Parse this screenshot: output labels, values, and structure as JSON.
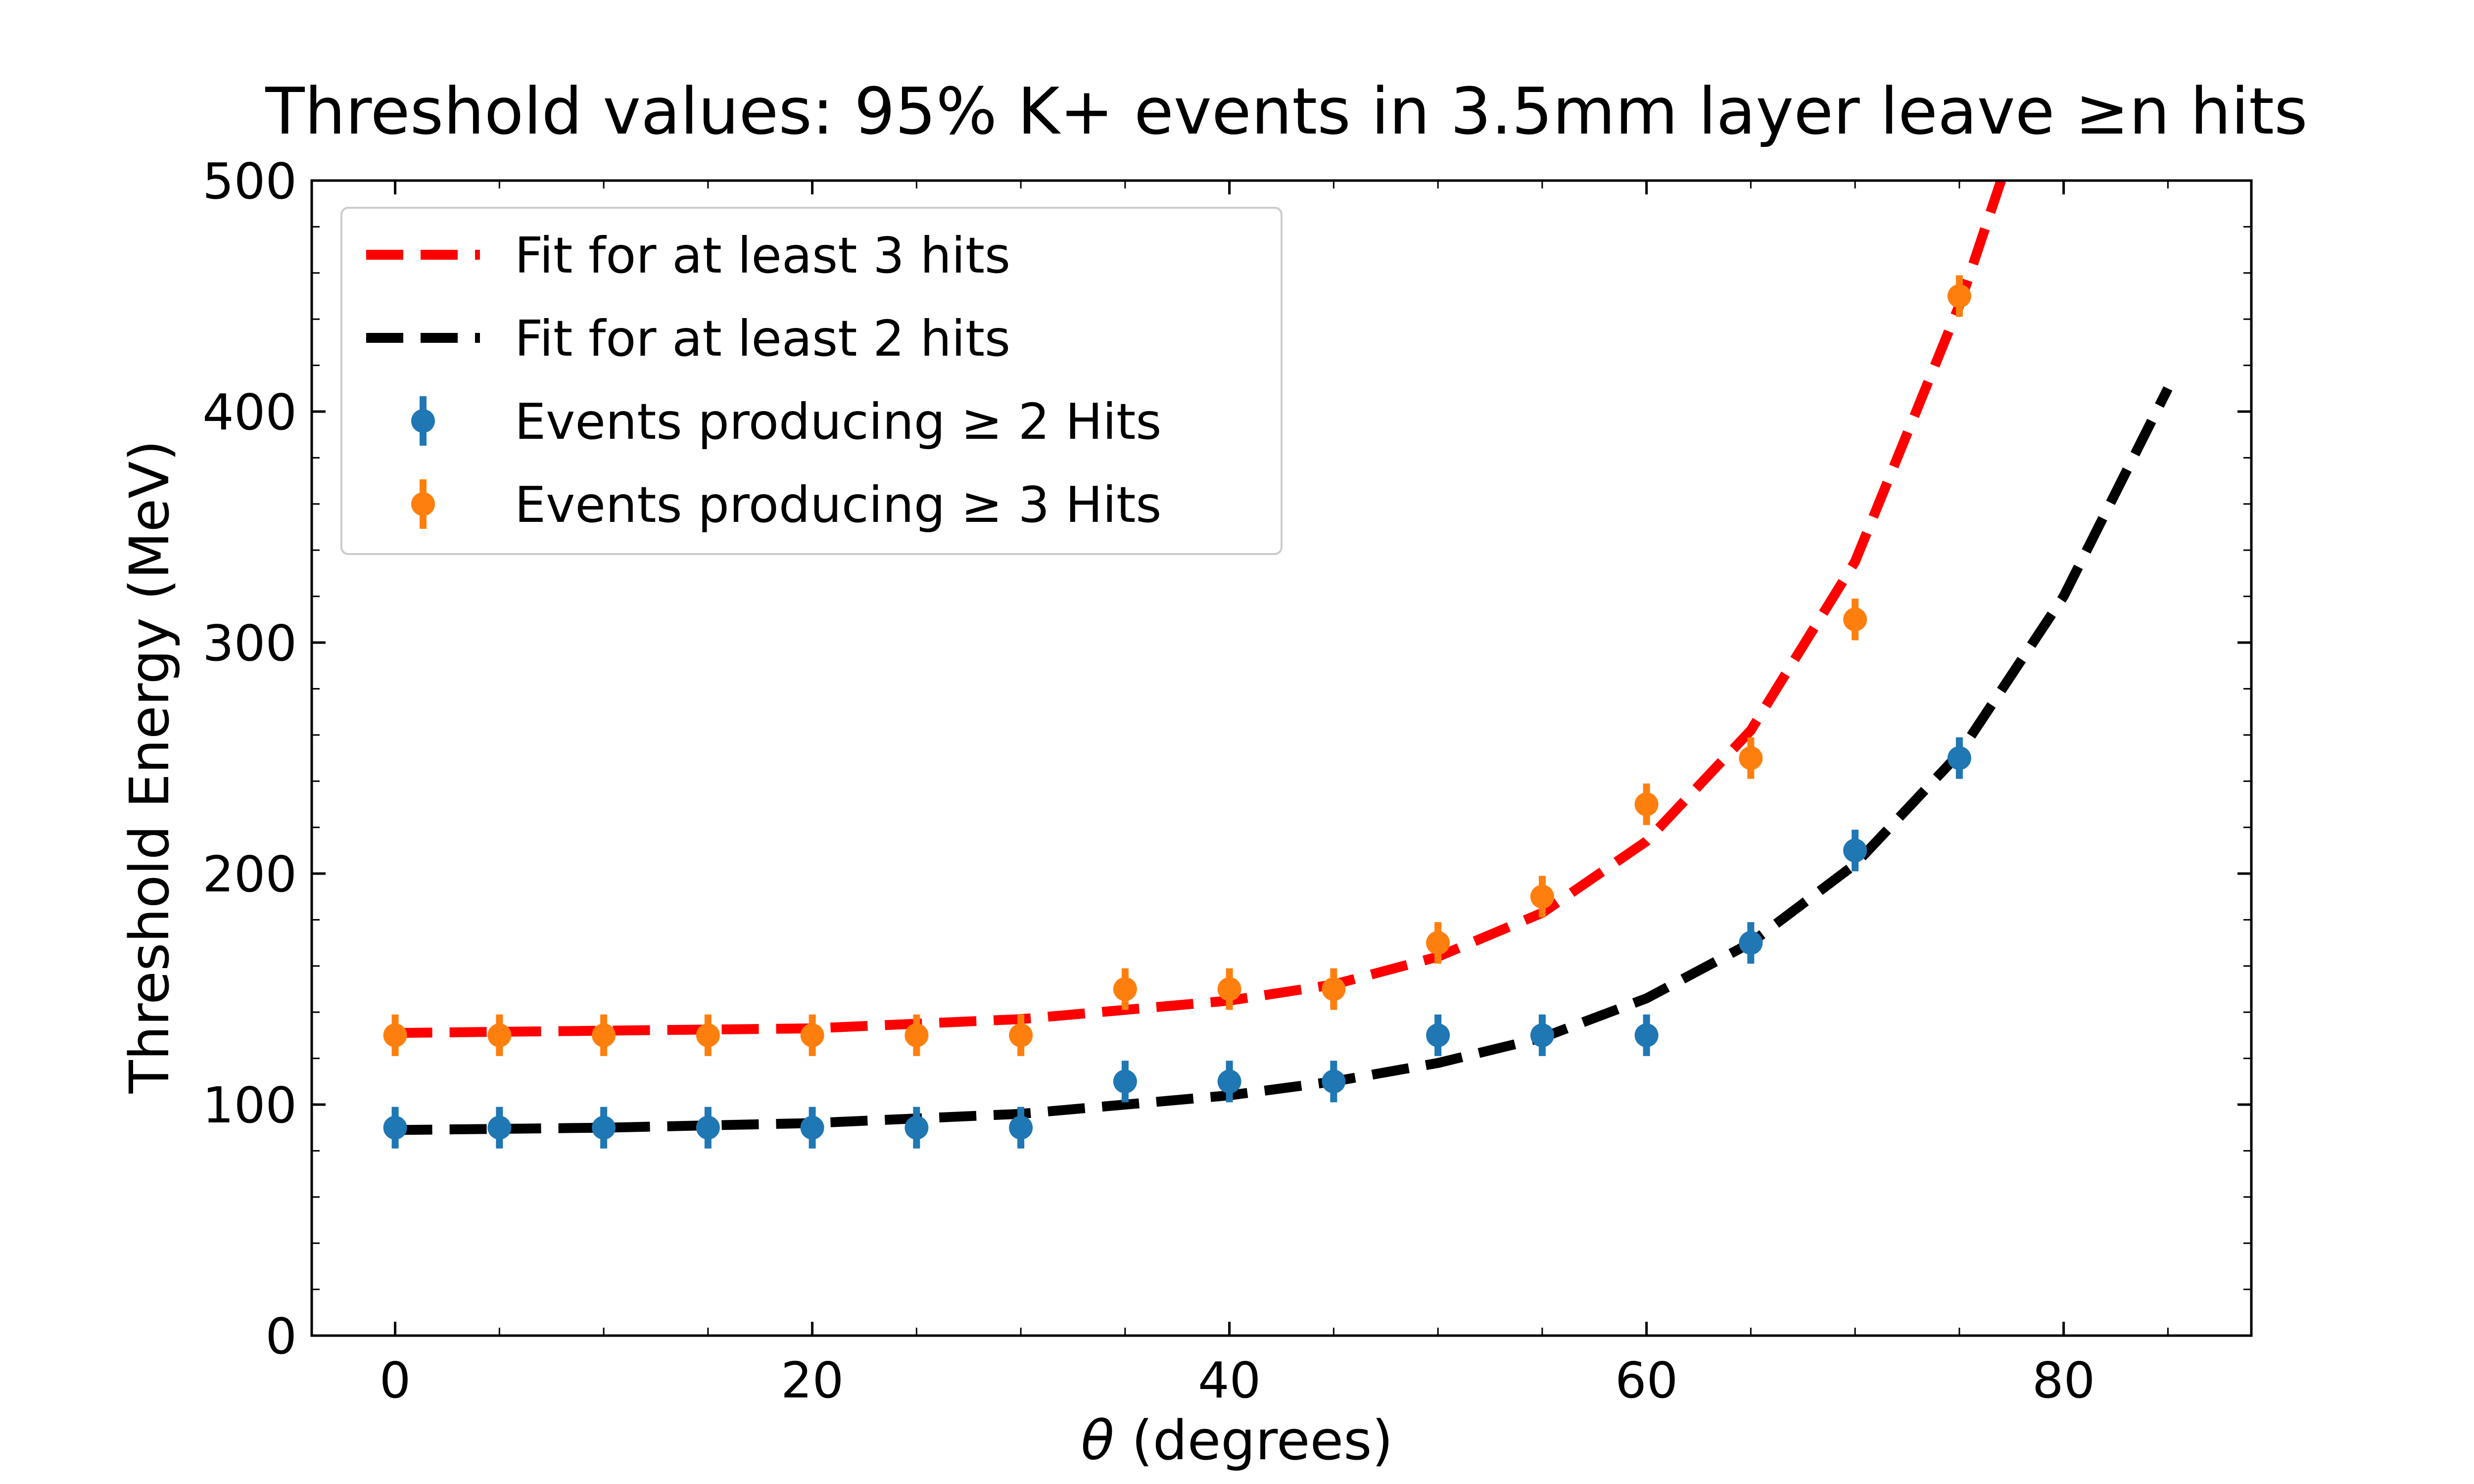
{
  "chart_data": {
    "type": "scatter",
    "title": "Threshold values: 95% K+ events in 3.5mm layer leave ≥n hits",
    "xlabel_symbol": "θ",
    "xlabel_rest": " (degrees)",
    "ylabel": "Threshold Energy (MeV)",
    "xlim": [
      -4,
      89
    ],
    "ylim": [
      0,
      500
    ],
    "x_ticks": [
      0,
      20,
      40,
      60,
      80
    ],
    "y_ticks": [
      0,
      100,
      200,
      300,
      400,
      500
    ],
    "x_tick_labels": [
      "0",
      "20",
      "40",
      "60",
      "80"
    ],
    "y_tick_labels": [
      "0",
      "100",
      "200",
      "300",
      "400",
      "500"
    ],
    "grid": false,
    "legend_position": "top-left",
    "series": [
      {
        "name": "Events producing ≥ 2 Hits",
        "kind": "errorbar",
        "color": "#1f77b4",
        "x": [
          0,
          5,
          10,
          15,
          20,
          25,
          30,
          35,
          40,
          45,
          50,
          55,
          60,
          65,
          70,
          75
        ],
        "y": [
          90,
          90,
          90,
          90,
          90,
          90,
          90,
          110,
          110,
          110,
          130,
          130,
          130,
          170,
          210,
          250
        ],
        "yerr": 9
      },
      {
        "name": "Events producing ≥ 3 Hits",
        "kind": "errorbar",
        "color": "#ff7f0e",
        "x": [
          0,
          5,
          10,
          15,
          20,
          25,
          30,
          35,
          40,
          45,
          50,
          55,
          60,
          65,
          70,
          75
        ],
        "y": [
          130,
          130,
          130,
          130,
          130,
          130,
          130,
          150,
          150,
          150,
          170,
          190,
          230,
          250,
          310,
          450
        ],
        "yerr": 9
      },
      {
        "name": "Fit for at least 3 hits",
        "kind": "dashed-line",
        "color": "#ff0000",
        "x": [
          0,
          10,
          20,
          30,
          40,
          45,
          50,
          55,
          60,
          65,
          70,
          75,
          77
        ],
        "y": [
          131,
          132,
          133,
          137,
          145,
          152,
          164,
          183,
          214,
          262,
          335,
          446,
          500
        ]
      },
      {
        "name": "Fit for at least 2 hits",
        "kind": "dashed-line",
        "color": "#000000",
        "x": [
          0,
          10,
          20,
          30,
          40,
          45,
          50,
          55,
          60,
          65,
          70,
          75,
          80,
          85
        ],
        "y": [
          89,
          90,
          92,
          96,
          104,
          110,
          118,
          129,
          146,
          170,
          204,
          252,
          320,
          410
        ]
      }
    ],
    "legend_order": [
      2,
      3,
      0,
      1
    ]
  }
}
